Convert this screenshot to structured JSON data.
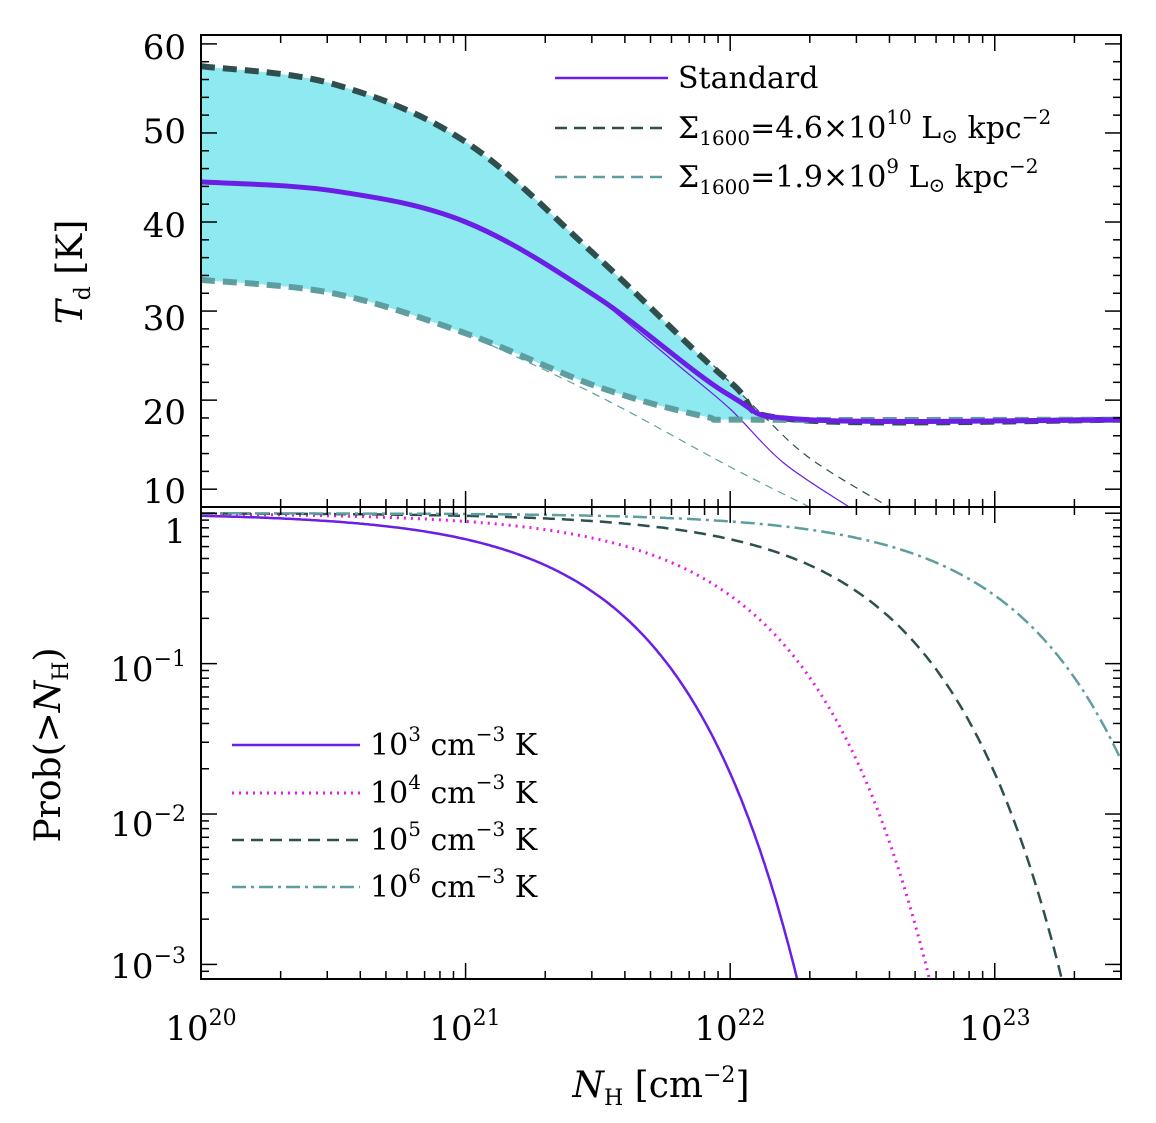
{
  "chart_data": [
    {
      "type": "line",
      "panel": "top",
      "xscale": "log",
      "xlim": [
        1e+20,
        3e+23
      ],
      "ylim": [
        8,
        61
      ],
      "ylabel": {
        "symbol": "T",
        "subscript": "d",
        "unit": "[K]"
      },
      "yticks": [
        10,
        20,
        30,
        40,
        50,
        60
      ],
      "ytick_labels": [
        "10",
        "20",
        "30",
        "40",
        "50",
        "60"
      ],
      "legend": [
        {
          "text": "Standard",
          "color": "#6a1ee6",
          "style": "solid"
        },
        {
          "base": "Σ",
          "sub": "1600",
          "mid": "=4.6×10",
          "sup": "10",
          "tail": " L",
          "tail2": " kpc",
          "sup2": "−2",
          "color": "#2f4f4f",
          "style": "dashed"
        },
        {
          "base": "Σ",
          "sub": "1600",
          "mid": "=1.9×10",
          "sup": "9",
          "tail": " L",
          "tail2": " kpc",
          "sup2": "−2",
          "color": "#5f9ea0",
          "style": "dashed"
        }
      ],
      "floor": 17.8,
      "series": [
        {
          "name": "Standard",
          "color": "#6a1ee6",
          "points": [
            [
              20,
              44.5
            ],
            [
              20.5,
              43.5
            ],
            [
              21,
              40
            ],
            [
              21.5,
              31.5
            ],
            [
              22,
              20.5
            ],
            [
              22.3,
              17.8
            ],
            [
              23.5,
              17.8
            ]
          ]
        },
        {
          "name": "Standard (thin)",
          "color": "#6a1ee6",
          "points": [
            [
              21.5,
              31.5
            ],
            [
              21.8,
              24
            ],
            [
              22,
              19
            ],
            [
              22.2,
              13
            ],
            [
              22.45,
              8
            ]
          ]
        },
        {
          "name": "Σ1600=4.6×10^10",
          "color": "#2f4f4f",
          "points": [
            [
              20,
              57.5
            ],
            [
              20.5,
              55.5
            ],
            [
              21,
              49
            ],
            [
              21.5,
              36
            ],
            [
              22,
              22
            ],
            [
              22.25,
              17.8
            ],
            [
              23.5,
              17.8
            ]
          ]
        },
        {
          "name": "Σ1600=4.6×10^10 (thin)",
          "color": "#2f4f4f",
          "points": [
            [
              21.9,
              25
            ],
            [
              22.1,
              19
            ],
            [
              22.3,
              13.5
            ],
            [
              22.6,
              8
            ]
          ]
        },
        {
          "name": "Σ1600=1.9×10^9",
          "color": "#5f9ea0",
          "points": [
            [
              20,
              33.5
            ],
            [
              20.5,
              32
            ],
            [
              21,
              27.5
            ],
            [
              21.5,
              21.5
            ],
            [
              21.9,
              18.2
            ],
            [
              22.1,
              17.8
            ],
            [
              23.5,
              17.8
            ]
          ]
        },
        {
          "name": "Σ1600=1.9×10^9 (thin)",
          "color": "#5f9ea0",
          "points": [
            [
              21,
              27.5
            ],
            [
              21.5,
              20.5
            ],
            [
              22,
              12.5
            ],
            [
              22.3,
              8
            ]
          ]
        }
      ],
      "fill_color": "#8eeaf0"
    },
    {
      "type": "line",
      "panel": "bottom",
      "xscale": "log",
      "yscale": "log",
      "xlim": [
        1e+20,
        3e+23
      ],
      "ylim": [
        0.0008,
        1.1
      ],
      "xlabel": {
        "symbol": "N",
        "subscript": "H",
        "unit": "[cm",
        "unit_sup": "−2",
        "unit_close": "]"
      },
      "ylabel": {
        "text": "Prob(>",
        "symbol": "N",
        "subscript": "H",
        "close": ")"
      },
      "xtick_labels": [
        {
          "base": "10",
          "exp": "20"
        },
        {
          "base": "10",
          "exp": "21"
        },
        {
          "base": "10",
          "exp": "22"
        },
        {
          "base": "10",
          "exp": "23"
        }
      ],
      "ytick_labels": [
        {
          "base": "1",
          "exp": ""
        },
        {
          "base": "10",
          "exp": "−1"
        },
        {
          "base": "10",
          "exp": "−2"
        },
        {
          "base": "10",
          "exp": "−3"
        }
      ],
      "legend": [
        {
          "base": "10",
          "sup": "3",
          "unit": " cm",
          "unit_sup": "−3",
          "tail": " K",
          "color": "#6a1ee6",
          "style": "solid"
        },
        {
          "base": "10",
          "sup": "4",
          "unit": " cm",
          "unit_sup": "−3",
          "tail": " K",
          "color": "#e619e6",
          "style": "dotted"
        },
        {
          "base": "10",
          "sup": "5",
          "unit": " cm",
          "unit_sup": "−3",
          "tail": " K",
          "color": "#2f4f4f",
          "style": "dashed"
        },
        {
          "base": "10",
          "sup": "6",
          "unit": " cm",
          "unit_sup": "−3",
          "tail": " K",
          "color": "#5f9ea0",
          "style": "dashdot"
        }
      ],
      "series": [
        {
          "name": "10^3 cm^-3 K",
          "color": "#6a1ee6",
          "scale": 22.0
        },
        {
          "name": "10^4 cm^-3 K",
          "color": "#e619e6",
          "scale": 22.5
        },
        {
          "name": "10^5 cm^-3 K",
          "color": "#2f4f4f",
          "scale": 23.0
        },
        {
          "name": "10^6 cm^-3 K",
          "color": "#5f9ea0",
          "scale": 23.5
        }
      ]
    }
  ],
  "legend_symbol": "⊙"
}
